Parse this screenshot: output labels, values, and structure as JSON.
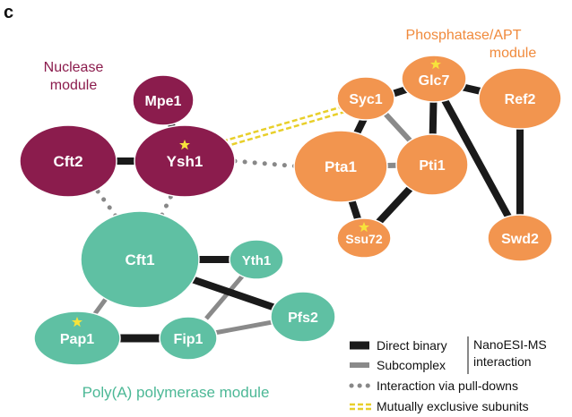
{
  "panel_label": "c",
  "colors": {
    "nuclease": "#8b1c4d",
    "nuclease_text": "#8b1c4d",
    "phosphatase": "#f2954f",
    "phosphatase_text": "#f08a3c",
    "polya": "#5fc0a3",
    "polya_text": "#4cb896",
    "direct": "#1a1a1a",
    "subcomplex": "#8a8a8a",
    "pulldown": "#888888",
    "exclusive": "#e8cf2a",
    "star": "#f7e33b"
  },
  "modules": {
    "nuclease_line1": "Nuclease",
    "nuclease_line2": "module",
    "phosphatase_line1": "Phosphatase/APT",
    "phosphatase_line2": "module",
    "polya": "Poly(A) polymerase module"
  },
  "nodes": {
    "mpe1": "Mpe1",
    "cft2": "Cft2",
    "ysh1": "Ysh1",
    "syc1": "Syc1",
    "glc7": "Glc7",
    "ref2": "Ref2",
    "pta1": "Pta1",
    "pti1": "Pti1",
    "ssu72": "Ssu72",
    "swd2": "Swd2",
    "cft1": "Cft1",
    "yth1": "Yth1",
    "pfs2": "Pfs2",
    "pap1": "Pap1",
    "fip1": "Fip1"
  },
  "legend": {
    "direct": "Direct binary",
    "subcomplex": "Subcomplex",
    "method_line1": "NanoESI-MS",
    "method_line2": "interaction",
    "pulldown": "Interaction via pull-downs",
    "exclusive": "Mutually exclusive subunits"
  }
}
